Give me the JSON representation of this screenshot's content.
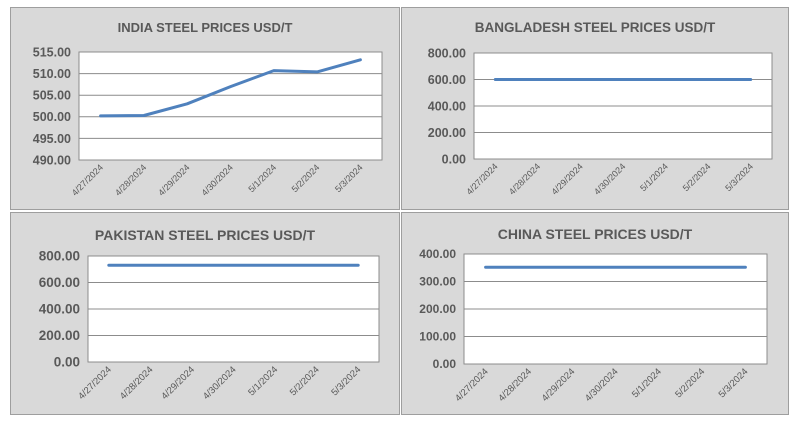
{
  "chart_data": [
    {
      "type": "line",
      "title": "INDIA STEEL PRICES USD/T",
      "categories": [
        "4/27/2024",
        "4/28/2024",
        "4/29/2024",
        "4/30/2024",
        "5/1/2024",
        "5/2/2024",
        "5/3/2024"
      ],
      "series": [
        {
          "values": [
            500.2,
            500.3,
            503.0,
            507.0,
            510.7,
            510.4,
            513.2
          ]
        }
      ],
      "ylim": [
        490,
        515
      ],
      "yticks": [
        "490.00",
        "495.00",
        "500.00",
        "505.00",
        "510.00",
        "515.00"
      ],
      "grid": true,
      "line_color": "#4f81bd"
    },
    {
      "type": "line",
      "title": "BANGLADESH STEEL PRICES USD/T",
      "categories": [
        "4/27/2024",
        "4/28/2024",
        "4/29/2024",
        "4/30/2024",
        "5/1/2024",
        "5/2/2024",
        "5/3/2024"
      ],
      "series": [
        {
          "values": [
            600,
            600,
            600,
            600,
            600,
            600,
            600
          ]
        }
      ],
      "ylim": [
        0,
        800
      ],
      "yticks": [
        "0.00",
        "200.00",
        "400.00",
        "600.00",
        "800.00"
      ],
      "grid": true,
      "line_color": "#4f81bd"
    },
    {
      "type": "line",
      "title": "PAKISTAN STEEL PRICES USD/T",
      "categories": [
        "4/27/2024",
        "4/28/2024",
        "4/29/2024",
        "4/30/2024",
        "5/1/2024",
        "5/2/2024",
        "5/3/2024"
      ],
      "series": [
        {
          "values": [
            730,
            730,
            730,
            730,
            730,
            730,
            730
          ]
        }
      ],
      "ylim": [
        0,
        800
      ],
      "yticks": [
        "0.00",
        "200.00",
        "400.00",
        "600.00",
        "800.00"
      ],
      "grid": true,
      "line_color": "#4f81bd"
    },
    {
      "type": "line",
      "title": "CHINA STEEL PRICES USD/T",
      "categories": [
        "4/27/2024",
        "4/28/2024",
        "4/29/2024",
        "4/30/2024",
        "5/1/2024",
        "5/2/2024",
        "5/3/2024"
      ],
      "series": [
        {
          "values": [
            352,
            352,
            352,
            352,
            352,
            352,
            352
          ]
        }
      ],
      "ylim": [
        0,
        400
      ],
      "yticks": [
        "0.00",
        "100.00",
        "200.00",
        "300.00",
        "400.00"
      ],
      "grid": true,
      "line_color": "#4f81bd"
    }
  ]
}
